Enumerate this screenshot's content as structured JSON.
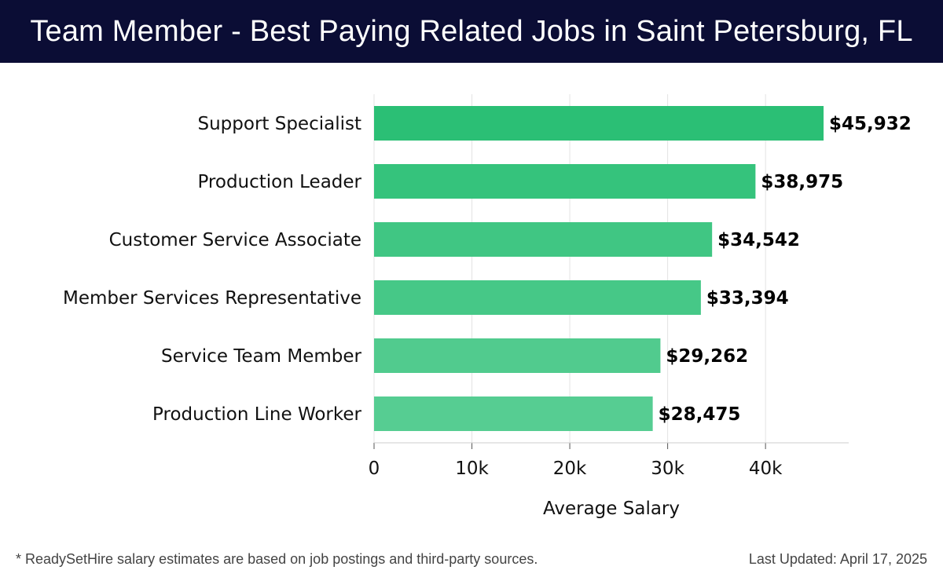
{
  "header": {
    "title": "Team Member - Best Paying Related Jobs in Saint Petersburg, FL"
  },
  "chart_data": {
    "type": "bar",
    "orientation": "horizontal",
    "categories": [
      "Support Specialist",
      "Production Leader",
      "Customer Service Associate",
      "Member Services Representative",
      "Service Team Member",
      "Production Line Worker"
    ],
    "values": [
      45932,
      38975,
      34542,
      33394,
      29262,
      28475
    ],
    "value_labels": [
      "$45,932",
      "$38,975",
      "$34,542",
      "$33,394",
      "$29,262",
      "$28,475"
    ],
    "xlabel": "Average Salary",
    "xticks": [
      0,
      10000,
      20000,
      30000,
      40000
    ],
    "xtick_labels": [
      "0",
      "10k",
      "20k",
      "30k",
      "40k"
    ],
    "xlim": [
      0,
      48500
    ],
    "grid": "vertical",
    "bar_colors": [
      "#2bbf75",
      "#35c37c",
      "#40c683",
      "#46c887",
      "#51cb8e",
      "#56cd92"
    ]
  },
  "footer": {
    "note": "* ReadySetHire salary estimates are based on job postings and third-party sources.",
    "updated": "Last Updated: April 17, 2025"
  }
}
